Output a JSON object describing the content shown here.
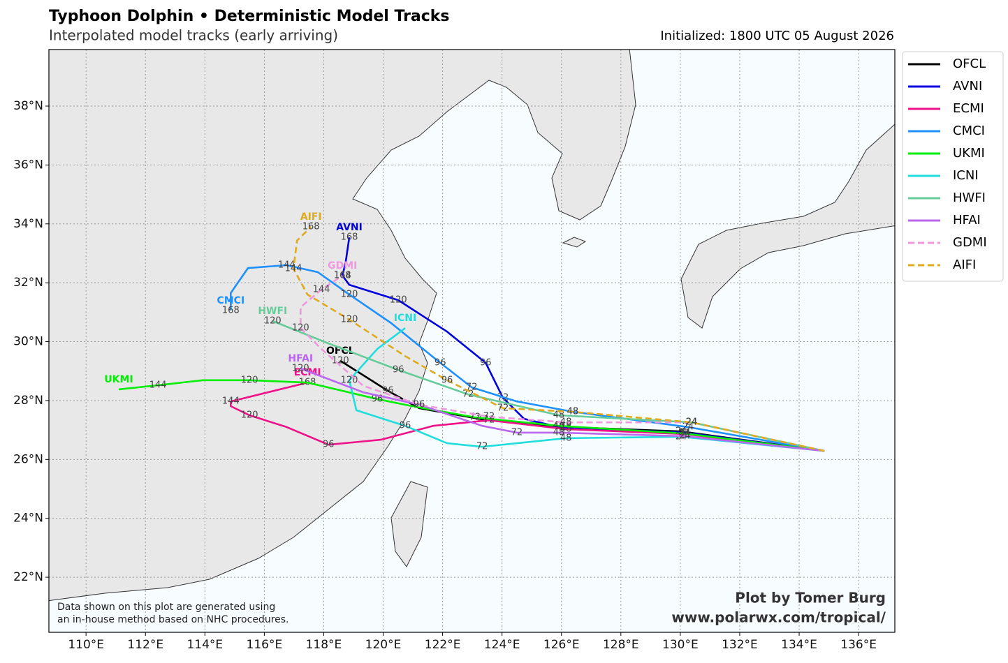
{
  "map": {
    "title": "Typhoon Dolphin • Deterministic Model Tracks",
    "subtitle": "Interpolated model tracks (early arriving)",
    "initialized": "Initialized: 1800 UTC 05 August 2026",
    "credit": [
      "Plot by Tomer Burg",
      "www.polarwx.com/tropical/"
    ],
    "disclaimer": [
      "Data shown on this plot are generated using",
      "an in-house method based on NHC procedures."
    ],
    "lonlim": [
      108.75,
      137.22
    ],
    "latlim": [
      20.13,
      39.92
    ],
    "lonticks": [
      {
        "value": 110,
        "label": "110°E"
      },
      {
        "value": 112,
        "label": "112°E"
      },
      {
        "value": 114,
        "label": "114°E"
      },
      {
        "value": 116,
        "label": "116°E"
      },
      {
        "value": 118,
        "label": "118°E"
      },
      {
        "value": 120,
        "label": "120°E"
      },
      {
        "value": 122,
        "label": "122°E"
      },
      {
        "value": 124,
        "label": "124°E"
      },
      {
        "value": 126,
        "label": "126°E"
      },
      {
        "value": 128,
        "label": "128°E"
      },
      {
        "value": 130,
        "label": "130°E"
      },
      {
        "value": 132,
        "label": "132°E"
      },
      {
        "value": 134,
        "label": "134°E"
      },
      {
        "value": 136,
        "label": "136°E"
      }
    ],
    "latticks": [
      {
        "value": 22,
        "label": "22°N"
      },
      {
        "value": 24,
        "label": "24°N"
      },
      {
        "value": 26,
        "label": "26°N"
      },
      {
        "value": 28,
        "label": "28°N"
      },
      {
        "value": 30,
        "label": "30°N"
      },
      {
        "value": 32,
        "label": "32°N"
      },
      {
        "value": 34,
        "label": "34°N"
      },
      {
        "value": 36,
        "label": "36°N"
      },
      {
        "value": 38,
        "label": "38°N"
      }
    ],
    "grid": true,
    "tracks": [
      {
        "name": "OFCL",
        "color": "#000000",
        "dashed": false,
        "points": [
          [
            134.85,
            26.29
          ],
          [
            130.03,
            26.95
          ],
          [
            126.15,
            27.1
          ],
          [
            123.33,
            27.36
          ],
          [
            121.21,
            27.74
          ],
          [
            120.16,
            28.33
          ],
          [
            118.56,
            29.35
          ]
        ],
        "taus": [
          null,
          24,
          48,
          72,
          null,
          96,
          120
        ]
      },
      {
        "name": "AVNI",
        "color": "#0000dd",
        "dashed": false,
        "points": [
          [
            134.85,
            26.29
          ],
          [
            130.15,
            26.91
          ],
          [
            125.91,
            27.1
          ],
          [
            124.74,
            27.38
          ],
          [
            124.03,
            28.09
          ],
          [
            123.45,
            29.28
          ],
          [
            122.15,
            30.34
          ],
          [
            120.51,
            31.41
          ],
          [
            118.86,
            31.93
          ],
          [
            118.63,
            32.24
          ],
          [
            118.74,
            32.71
          ],
          [
            118.86,
            33.54
          ]
        ],
        "taus": [
          null,
          24,
          48,
          null,
          72,
          96,
          null,
          120,
          null,
          144,
          null,
          168
        ]
      },
      {
        "name": "ECMI",
        "color": "#ee1188",
        "dashed": false,
        "points": [
          [
            134.85,
            26.29
          ],
          [
            130.15,
            26.86
          ],
          [
            126.15,
            27.03
          ],
          [
            123.56,
            27.33
          ],
          [
            121.68,
            27.14
          ],
          [
            119.92,
            26.67
          ],
          [
            118.16,
            26.5
          ],
          [
            116.75,
            27.1
          ],
          [
            115.5,
            27.5
          ],
          [
            114.87,
            27.81
          ],
          [
            114.87,
            27.97
          ],
          [
            117.45,
            28.61
          ]
        ],
        "taus": [
          null,
          24,
          48,
          72,
          null,
          null,
          96,
          null,
          120,
          null,
          144,
          168
        ]
      },
      {
        "name": "CMCI",
        "color": "#1e90ff",
        "dashed": false,
        "points": [
          [
            134.85,
            26.29
          ],
          [
            130.26,
            27.1
          ],
          [
            126.38,
            27.62
          ],
          [
            124.5,
            27.97
          ],
          [
            122.98,
            28.45
          ],
          [
            121.92,
            29.28
          ],
          [
            120.27,
            30.63
          ],
          [
            118.86,
            31.6
          ],
          [
            117.8,
            32.36
          ],
          [
            116.75,
            32.6
          ],
          [
            115.45,
            32.5
          ],
          [
            114.87,
            31.65
          ],
          [
            114.87,
            31.06
          ]
        ],
        "taus": [
          null,
          24,
          48,
          null,
          72,
          96,
          null,
          120,
          null,
          144,
          null,
          null,
          168
        ]
      },
      {
        "name": "UKMI",
        "color": "#00ee00",
        "dashed": false,
        "points": [
          [
            134.85,
            26.29
          ],
          [
            130.15,
            26.88
          ],
          [
            125.91,
            27.14
          ],
          [
            123.09,
            27.43
          ],
          [
            120.98,
            27.81
          ],
          [
            119.8,
            28.05
          ],
          [
            117.45,
            28.61
          ],
          [
            115.5,
            28.69
          ],
          [
            113.93,
            28.69
          ],
          [
            112.42,
            28.52
          ],
          [
            111.1,
            28.38
          ]
        ],
        "taus": [
          null,
          24,
          48,
          72,
          null,
          96,
          null,
          120,
          null,
          144,
          null
        ]
      },
      {
        "name": "ICNI",
        "color": "#22dddd",
        "dashed": false,
        "points": [
          [
            134.85,
            26.29
          ],
          [
            130.03,
            26.77
          ],
          [
            126.15,
            26.72
          ],
          [
            123.33,
            26.43
          ],
          [
            122.15,
            26.55
          ],
          [
            120.74,
            27.14
          ],
          [
            119.1,
            27.67
          ],
          [
            118.86,
            28.69
          ],
          [
            119.8,
            29.75
          ],
          [
            120.74,
            30.46
          ]
        ],
        "taus": [
          null,
          24,
          48,
          72,
          null,
          96,
          null,
          120,
          null,
          null
        ]
      },
      {
        "name": "HWFI",
        "color": "#66cc99",
        "dashed": false,
        "points": [
          [
            134.85,
            26.29
          ],
          [
            130.38,
            27.26
          ],
          [
            125.91,
            27.5
          ],
          [
            122.86,
            28.21
          ],
          [
            120.51,
            29.04
          ],
          [
            118.16,
            29.94
          ],
          [
            116.28,
            30.7
          ]
        ],
        "taus": [
          null,
          24,
          48,
          72,
          96,
          null,
          120
        ]
      },
      {
        "name": "HFAI",
        "color": "#bb66ee",
        "dashed": false,
        "points": [
          [
            134.85,
            26.29
          ],
          [
            130.15,
            26.79
          ],
          [
            125.91,
            26.91
          ],
          [
            124.5,
            26.91
          ],
          [
            123.33,
            27.14
          ],
          [
            121.21,
            27.86
          ],
          [
            119.33,
            28.28
          ],
          [
            117.22,
            29.09
          ]
        ],
        "taus": [
          null,
          24,
          48,
          72,
          null,
          96,
          null,
          120
        ]
      },
      {
        "name": "GDMI",
        "color": "#ee99dd",
        "dashed": true,
        "points": [
          [
            134.85,
            26.29
          ],
          [
            130.38,
            27.26
          ],
          [
            126.15,
            27.26
          ],
          [
            123.56,
            27.45
          ],
          [
            121.21,
            27.86
          ],
          [
            119.33,
            28.5
          ],
          [
            117.92,
            29.75
          ],
          [
            117.22,
            30.46
          ],
          [
            117.22,
            31.17
          ],
          [
            117.92,
            31.77
          ],
          [
            118.63,
            32.24
          ]
        ],
        "taus": [
          null,
          24,
          48,
          72,
          96,
          null,
          null,
          120,
          null,
          144,
          168
        ]
      },
      {
        "name": "AIFI",
        "color": "#ddaa22",
        "dashed": true,
        "points": [
          [
            134.85,
            26.29
          ],
          [
            130.38,
            27.26
          ],
          [
            126.38,
            27.62
          ],
          [
            124.03,
            27.74
          ],
          [
            122.15,
            28.69
          ],
          [
            120.74,
            29.51
          ],
          [
            118.86,
            30.75
          ],
          [
            117.45,
            31.6
          ],
          [
            116.98,
            32.48
          ],
          [
            117.1,
            33.43
          ],
          [
            117.57,
            33.9
          ]
        ],
        "taus": [
          null,
          24,
          48,
          72,
          96,
          null,
          120,
          null,
          144,
          null,
          168
        ]
      }
    ]
  }
}
